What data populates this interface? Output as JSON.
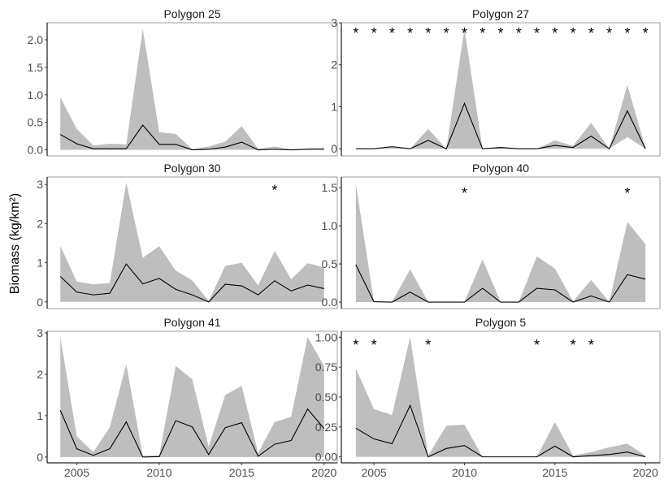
{
  "chart_data": {
    "type": "area",
    "layout": "facet-grid 3x2",
    "ylabel": "Biomass (kg/km²)",
    "xlabel": "",
    "x": [
      2004,
      2005,
      2006,
      2007,
      2008,
      2009,
      2010,
      2011,
      2012,
      2013,
      2014,
      2015,
      2016,
      2017,
      2018,
      2019,
      2020
    ],
    "x_ticks": [
      2005,
      2010,
      2015,
      2020
    ],
    "x_tick_labels": [
      "2005",
      "2010",
      "2015",
      "2020"
    ],
    "xlim": [
      2003.2,
      2020.8
    ],
    "colors": {
      "band": "#bebebe",
      "line": "#000000",
      "frame": "#b3b3b3"
    },
    "grid": false,
    "marker_symbol": "*",
    "panels": [
      {
        "title": "Polygon 25",
        "ylim": [
          -0.11,
          2.31
        ],
        "y_ticks": [
          0,
          0.5,
          1,
          1.5,
          2
        ],
        "y_tick_labels": [
          "0.0",
          "0.5",
          "1.0",
          "1.5",
          "2.0"
        ],
        "mean": [
          0.28,
          0.11,
          0.02,
          0.02,
          0.02,
          0.45,
          0.1,
          0.1,
          0,
          0.01,
          0.05,
          0.14,
          0,
          0.01,
          0,
          0.01,
          0.01
        ],
        "upper": [
          0.95,
          0.38,
          0.08,
          0.11,
          0.1,
          2.2,
          0.32,
          0.29,
          0.01,
          0.06,
          0.15,
          0.43,
          0.02,
          0.06,
          0.01,
          0.03,
          0.04
        ],
        "lower": [
          0,
          0,
          0,
          0,
          0,
          0,
          0,
          0,
          0,
          0,
          0,
          0,
          0,
          0,
          0,
          0,
          0
        ],
        "asterisk_years": [],
        "asterisk_y": 2.2
      },
      {
        "title": "Polygon 27",
        "ylim": [
          -0.17,
          3.0
        ],
        "y_ticks": [
          0,
          1,
          2,
          3
        ],
        "y_tick_labels": [
          "0",
          "1",
          "2",
          "3"
        ],
        "mean": [
          0,
          0,
          0.05,
          0,
          0.2,
          0,
          1.08,
          0,
          0.03,
          0,
          0,
          0.08,
          0.03,
          0.3,
          0,
          0.9,
          0
        ],
        "upper": [
          0,
          0,
          0.05,
          0,
          0.47,
          0,
          2.85,
          0,
          0.05,
          0,
          0,
          0.2,
          0.07,
          0.62,
          0,
          1.52,
          0.02
        ],
        "lower": [
          0,
          0,
          0,
          0,
          0,
          0,
          0,
          0,
          0,
          0,
          0,
          0,
          0,
          0,
          0,
          0.28,
          0
        ],
        "asterisk_years": [
          2004,
          2005,
          2006,
          2007,
          2008,
          2009,
          2010,
          2011,
          2012,
          2013,
          2014,
          2015,
          2016,
          2017,
          2018,
          2019,
          2020
        ],
        "asterisk_y": 2.85
      },
      {
        "title": "Polygon 30",
        "ylim": [
          -0.17,
          3.19
        ],
        "y_ticks": [
          0,
          1,
          2,
          3
        ],
        "y_tick_labels": [
          "0",
          "1",
          "2",
          "3"
        ],
        "mean": [
          0.65,
          0.25,
          0.18,
          0.22,
          0.97,
          0.46,
          0.6,
          0.32,
          0.18,
          0,
          0.45,
          0.41,
          0.18,
          0.54,
          0.28,
          0.43,
          0.34
        ],
        "upper": [
          1.43,
          0.52,
          0.45,
          0.48,
          3.05,
          1.13,
          1.42,
          0.8,
          0.55,
          0.02,
          0.92,
          1.0,
          0.42,
          1.3,
          0.58,
          0.99,
          0.88
        ],
        "lower": [
          0,
          0,
          0,
          0,
          0,
          0,
          0,
          0,
          0,
          0,
          0,
          0,
          0,
          0,
          0,
          0,
          0
        ],
        "asterisk_years": [
          2017
        ],
        "asterisk_y": 2.95
      },
      {
        "title": "Polygon 40",
        "ylim": [
          -0.085,
          1.64
        ],
        "y_ticks": [
          0,
          0.5,
          1,
          1.5
        ],
        "y_tick_labels": [
          "0.0",
          "0.5",
          "1.0",
          "1.5"
        ],
        "mean": [
          0.49,
          0.005,
          0,
          0.13,
          0,
          0,
          0,
          0.18,
          0,
          0,
          0.18,
          0.16,
          0,
          0.08,
          0,
          0.36,
          0.3
        ],
        "upper": [
          1.55,
          0.01,
          0,
          0.43,
          0,
          0,
          0,
          0.56,
          0,
          0,
          0.6,
          0.44,
          0.01,
          0.29,
          0,
          1.05,
          0.76
        ],
        "lower": [
          0,
          0,
          0,
          0,
          0,
          0,
          0,
          0,
          0,
          0,
          0,
          0,
          0,
          0,
          0,
          0,
          0
        ],
        "asterisk_years": [
          2010,
          2019
        ],
        "asterisk_y": 1.48
      },
      {
        "title": "Polygon 41",
        "ylim": [
          -0.14,
          3.04
        ],
        "y_ticks": [
          0,
          1,
          2,
          3
        ],
        "y_tick_labels": [
          "0",
          "1",
          "2",
          "3"
        ],
        "mean": [
          1.13,
          0.2,
          0.04,
          0.2,
          0.85,
          0,
          0.01,
          0.88,
          0.73,
          0.06,
          0.71,
          0.83,
          0.02,
          0.31,
          0.4,
          1.16,
          0.69
        ],
        "upper": [
          2.9,
          0.5,
          0.12,
          0.72,
          2.25,
          0.03,
          0.04,
          2.2,
          1.88,
          0.25,
          1.5,
          1.72,
          0.1,
          0.85,
          0.97,
          2.9,
          2.2
        ],
        "lower": [
          0,
          0,
          0,
          0,
          0,
          0,
          0,
          0,
          0,
          0,
          0,
          0,
          0,
          0,
          0,
          0,
          0
        ],
        "asterisk_years": [],
        "asterisk_y": 2.9
      },
      {
        "title": "Polygon 5",
        "ylim": [
          -0.05,
          1.05
        ],
        "y_ticks": [
          0,
          0.25,
          0.5,
          0.75,
          1
        ],
        "y_tick_labels": [
          "0.00",
          "0.25",
          "0.50",
          "0.75",
          "1.00"
        ],
        "mean": [
          0.24,
          0.15,
          0.11,
          0.43,
          0,
          0.07,
          0.095,
          0,
          0,
          0,
          0,
          0.09,
          0,
          0.01,
          0.02,
          0.04,
          0
        ],
        "upper": [
          0.74,
          0.4,
          0.35,
          1.0,
          0.01,
          0.26,
          0.27,
          0,
          0,
          0,
          0,
          0.29,
          0.01,
          0.04,
          0.08,
          0.11,
          0.01
        ],
        "lower": [
          0,
          0,
          0,
          0,
          0,
          0,
          0,
          0,
          0,
          0,
          0,
          0,
          0,
          0,
          0,
          0,
          0
        ],
        "asterisk_years": [
          2004,
          2005,
          2008,
          2014,
          2016,
          2017
        ],
        "asterisk_y": 0.97
      }
    ]
  }
}
